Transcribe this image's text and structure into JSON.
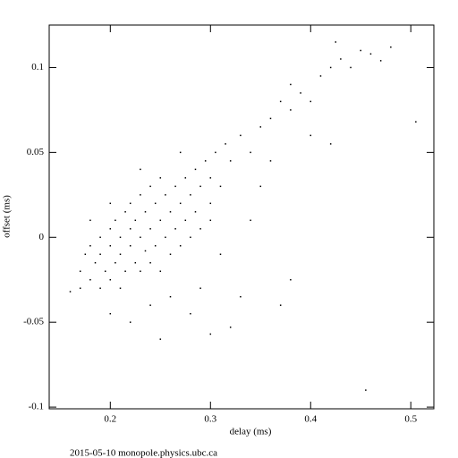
{
  "chart_data": {
    "type": "scatter",
    "x_label": "delay (ms)",
    "y_label": "offset (ms)",
    "footer": "2015-05-10 monopole.physics.ubc.ca",
    "color": "#000000",
    "xlim": [
      0.139,
      0.523
    ],
    "ylim": [
      -0.101,
      0.125
    ],
    "xticks": [
      0.2,
      0.3,
      0.4,
      0.5
    ],
    "yticks": [
      -0.1,
      -0.05,
      0,
      0.05,
      0.1
    ],
    "x": [
      0.16,
      0.17,
      0.175,
      0.18,
      0.18,
      0.185,
      0.19,
      0.19,
      0.19,
      0.195,
      0.2,
      0.2,
      0.2,
      0.205,
      0.205,
      0.21,
      0.21,
      0.21,
      0.215,
      0.215,
      0.22,
      0.22,
      0.22,
      0.225,
      0.225,
      0.23,
      0.23,
      0.23,
      0.235,
      0.235,
      0.24,
      0.24,
      0.24,
      0.245,
      0.245,
      0.25,
      0.25,
      0.25,
      0.255,
      0.255,
      0.26,
      0.26,
      0.265,
      0.265,
      0.27,
      0.27,
      0.275,
      0.275,
      0.28,
      0.28,
      0.285,
      0.285,
      0.29,
      0.29,
      0.295,
      0.3,
      0.3,
      0.305,
      0.31,
      0.315,
      0.32,
      0.33,
      0.34,
      0.35,
      0.36,
      0.37,
      0.38,
      0.38,
      0.39,
      0.4,
      0.41,
      0.42,
      0.43,
      0.44,
      0.45,
      0.46,
      0.47,
      0.48,
      0.505,
      0.42,
      0.455,
      0.25,
      0.3,
      0.2,
      0.32,
      0.37,
      0.33,
      0.28,
      0.35,
      0.29,
      0.24,
      0.22,
      0.26,
      0.3,
      0.31,
      0.34,
      0.38,
      0.4,
      0.425,
      0.36,
      0.27,
      0.23,
      0.2,
      0.18,
      0.17
    ],
    "y": [
      -0.032,
      -0.02,
      -0.01,
      -0.025,
      -0.005,
      -0.015,
      -0.03,
      0.0,
      -0.01,
      -0.02,
      -0.005,
      0.005,
      -0.025,
      -0.015,
      0.01,
      -0.01,
      0.0,
      -0.03,
      0.015,
      -0.02,
      0.005,
      -0.005,
      0.02,
      -0.015,
      0.01,
      0.0,
      0.025,
      -0.02,
      0.015,
      -0.008,
      0.005,
      0.03,
      -0.015,
      0.02,
      -0.005,
      0.01,
      0.035,
      -0.02,
      0.0,
      0.025,
      0.015,
      -0.01,
      0.03,
      0.005,
      0.02,
      -0.005,
      0.035,
      0.01,
      0.025,
      0.0,
      0.04,
      0.015,
      0.03,
      0.005,
      0.045,
      0.02,
      0.035,
      0.05,
      0.03,
      0.055,
      0.045,
      0.06,
      0.05,
      0.065,
      0.07,
      0.08,
      0.075,
      0.09,
      0.085,
      0.08,
      0.095,
      0.1,
      0.105,
      0.1,
      0.11,
      0.108,
      0.104,
      0.112,
      0.068,
      0.055,
      -0.09,
      -0.06,
      -0.057,
      -0.045,
      -0.053,
      -0.04,
      -0.035,
      -0.045,
      0.03,
      -0.03,
      -0.04,
      -0.05,
      -0.035,
      0.01,
      -0.01,
      0.01,
      -0.025,
      0.06,
      0.115,
      0.045,
      0.05,
      0.04,
      0.02,
      0.01,
      -0.03
    ]
  }
}
